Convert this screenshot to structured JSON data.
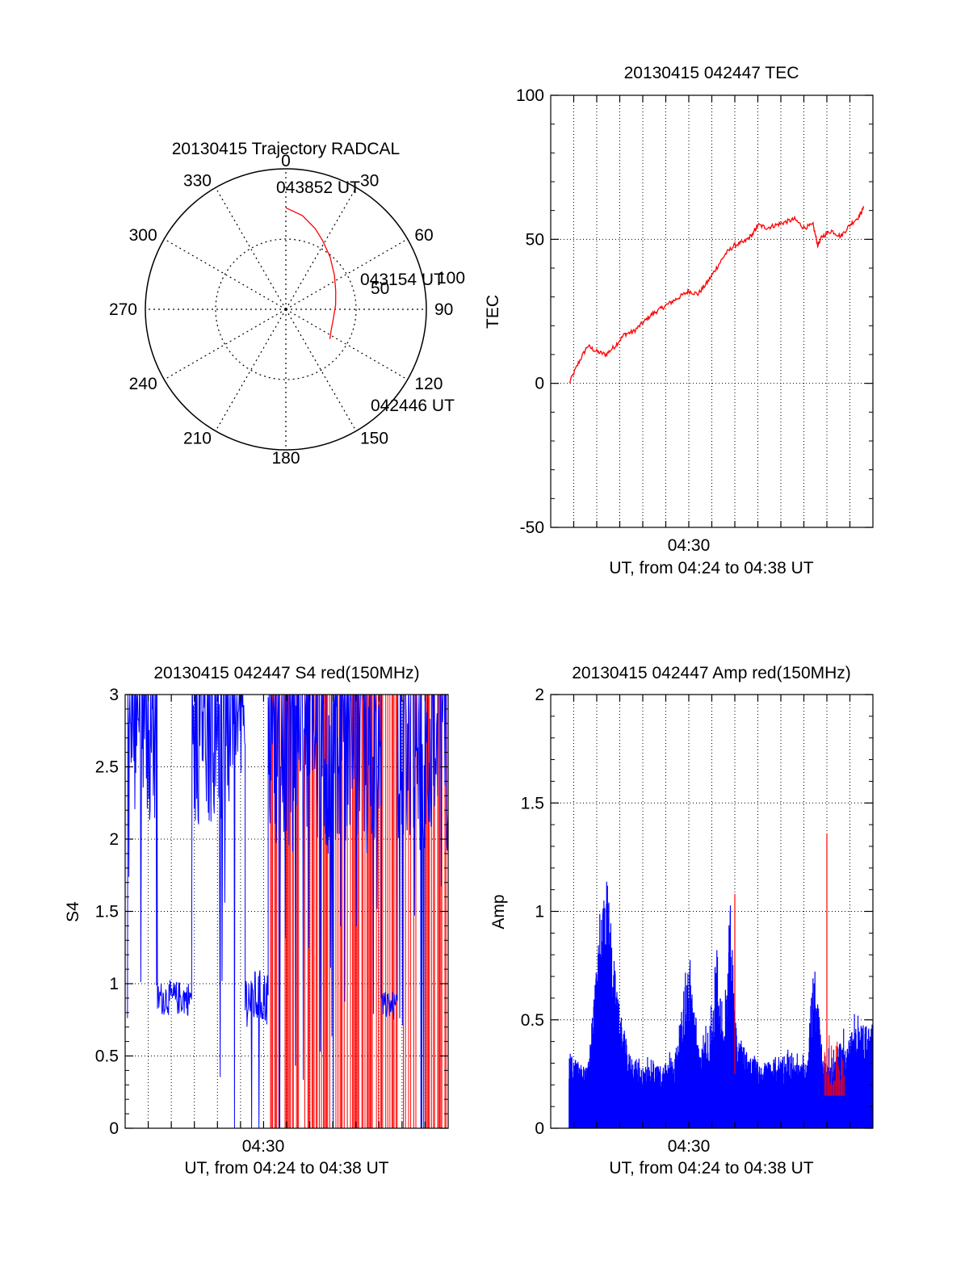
{
  "colors": {
    "background": "#ffffff",
    "axis": "#000000",
    "red": "#ff0000",
    "blue": "#0000ff"
  },
  "chart_data": [
    {
      "id": "trajectory",
      "type": "polar",
      "title": "20130415 Trajectory RADCAL",
      "azimuth_ticks": [
        "0",
        "30",
        "60",
        "90",
        "120",
        "150",
        "180",
        "210",
        "240",
        "270",
        "300",
        "330"
      ],
      "elevation_ring_labels": [
        "50",
        "100"
      ],
      "max_zenith_angle": 90,
      "trajectory": {
        "color": "#ff0000",
        "points_az_el": [
          [
            0,
            25
          ],
          [
            10,
            29
          ],
          [
            20,
            35
          ],
          [
            28,
            40
          ],
          [
            40,
            46
          ],
          [
            55,
            52
          ],
          [
            70,
            56
          ],
          [
            85,
            58
          ],
          [
            100,
            59
          ],
          [
            115,
            58
          ],
          [
            124,
            56
          ]
        ],
        "labels": [
          {
            "text": "043852 UT",
            "az": 9,
            "el": 24
          },
          {
            "text": "043154 UT",
            "az": 80,
            "el": 26
          },
          {
            "text": "042446 UT",
            "az": 124,
            "el": 33
          }
        ]
      }
    },
    {
      "id": "tec",
      "type": "line",
      "title": "20130415 042447 TEC",
      "xlabel": "UT, from 04:24 to 04:38 UT",
      "ylabel": "TEC",
      "x_tick_label": "04:30",
      "x_range_minutes": [
        0,
        14
      ],
      "ylim": [
        -50,
        100
      ],
      "yticks": [
        "-50",
        "0",
        "50",
        "100"
      ],
      "grid": true,
      "series": [
        {
          "color": "#ff0000",
          "x_minutes": [
            0.8,
            1.2,
            1.6,
            2.0,
            2.4,
            2.8,
            3.2,
            3.6,
            4.0,
            4.4,
            4.8,
            5.2,
            5.6,
            6.0,
            6.4,
            6.8,
            7.2,
            7.6,
            8.0,
            8.4,
            8.8,
            9.0,
            9.4,
            9.8,
            10.2,
            10.6,
            11.0,
            11.4,
            11.6,
            11.8,
            12.2,
            12.6,
            13.0,
            13.4,
            13.6
          ],
          "values": [
            0,
            7,
            13,
            11,
            10,
            13,
            17,
            18,
            21,
            24,
            26,
            28,
            30,
            32,
            31,
            35,
            40,
            45,
            48,
            49,
            52,
            55,
            54,
            55,
            56,
            57,
            54,
            55,
            48,
            51,
            53,
            51,
            55,
            58,
            61
          ]
        }
      ]
    },
    {
      "id": "s4",
      "type": "line",
      "title": "20130415 042447 S4 red(150MHz)",
      "xlabel": "UT, from 04:24 to 04:38 UT",
      "ylabel": "S4",
      "x_tick_label": "04:30",
      "x_range_minutes": [
        0,
        14
      ],
      "ylim": [
        0,
        3
      ],
      "yticks": [
        "0",
        "0.5",
        "1",
        "1.5",
        "2",
        "2.5",
        "3"
      ],
      "grid": true,
      "series": [
        {
          "color": "#ff0000",
          "description_values": "saturated spikes between 0 and 3 from about 04:31 to 04:38"
        },
        {
          "color": "#0000ff",
          "description_values": "high values near 3 early, plateau about 0.9 around 04:25-04:26, spiky later"
        }
      ],
      "blue_segments_minutes": [
        {
          "x": [
            0.1,
            1.4
          ],
          "level": 2.6,
          "spread": 0.5
        },
        {
          "x": [
            1.4,
            2.9
          ],
          "level": 0.9,
          "spread": 0.12
        },
        {
          "x": [
            2.9,
            5.2
          ],
          "level": 2.6,
          "spread": 0.5
        },
        {
          "x": [
            5.2,
            6.2
          ],
          "level": 0.9,
          "spread": 0.2
        },
        {
          "x": [
            6.2,
            11.1
          ],
          "level": 2.5,
          "spread": 0.6
        },
        {
          "x": [
            11.1,
            11.8
          ],
          "level": 0.85,
          "spread": 0.1
        },
        {
          "x": [
            11.8,
            14.0
          ],
          "level": 2.5,
          "spread": 0.6
        }
      ]
    },
    {
      "id": "amp",
      "type": "bar",
      "title": "20130415 042447 Amp red(150MHz)",
      "xlabel": "UT, from 04:24 to 04:38 UT",
      "ylabel": "Amp",
      "x_tick_label": "04:30",
      "x_range_minutes": [
        0,
        14
      ],
      "ylim": [
        0,
        2
      ],
      "yticks": [
        "0",
        "0.5",
        "1",
        "1.5",
        "2"
      ],
      "grid": true,
      "red_peaks": [
        {
          "x_minutes": 8.0,
          "value": 1.08
        },
        {
          "x_minutes": 12.0,
          "value": 1.36
        }
      ],
      "blue_envelope": {
        "x_minutes": [
          0.8,
          1.3,
          1.6,
          1.9,
          2.4,
          2.9,
          3.4,
          3.9,
          4.4,
          4.9,
          5.4,
          5.7,
          6.0,
          6.5,
          7.0,
          7.2,
          7.5,
          7.8,
          8.1,
          8.6,
          9.1,
          9.6,
          10.1,
          10.6,
          11.1,
          11.4,
          11.8,
          12.2,
          12.6,
          13.1,
          13.6,
          14.0
        ],
        "values": [
          0.35,
          0.3,
          0.28,
          0.65,
          1.22,
          0.6,
          0.35,
          0.3,
          0.28,
          0.3,
          0.35,
          0.55,
          0.8,
          0.35,
          0.5,
          0.85,
          0.45,
          1.05,
          0.45,
          0.35,
          0.3,
          0.32,
          0.35,
          0.3,
          0.3,
          0.72,
          0.35,
          0.32,
          0.4,
          0.45,
          0.5,
          0.45
        ]
      }
    }
  ]
}
